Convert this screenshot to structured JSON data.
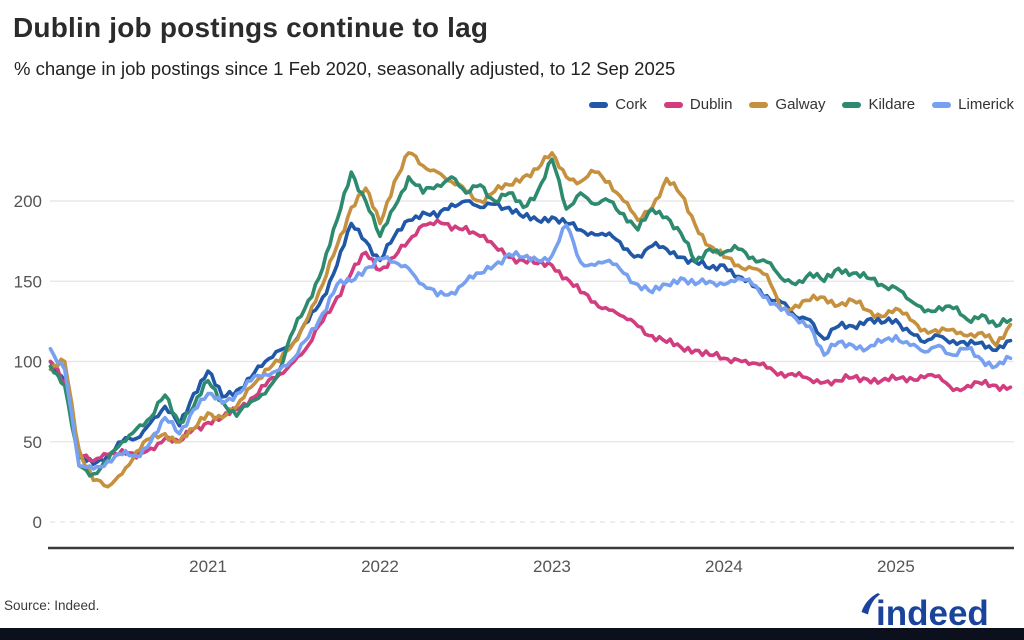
{
  "header": {
    "title": "Dublin job postings continue to lag",
    "subtitle": "% change in job postings since 1 Feb 2020, seasonally adjusted, to 12 Sep 2025"
  },
  "footer": {
    "source_text": "Source: Indeed.",
    "logo_text": "indeed"
  },
  "colors": {
    "accent_blue": "#1a449c",
    "grid": "#e4e4e4",
    "axis": "#3c3c3c",
    "tick_text": "#555555",
    "bottom_bar": "#0c101c"
  },
  "chart_data": {
    "type": "line",
    "title": "Dublin job postings continue to lag",
    "subtitle": "% change in job postings since 1 Feb 2020, seasonally adjusted, to 12 Sep 2025",
    "x_unit": "month",
    "x_start": "2020-02",
    "x_end": "2025-09",
    "grid": "horizontal",
    "legend_position": "top-right",
    "y_axis": {
      "ticks": [
        0,
        50,
        100,
        150,
        200
      ],
      "range": [
        0,
        235
      ],
      "label": "% change since 1 Feb 2020"
    },
    "x_ticks": [
      {
        "label": "2021",
        "month": 11
      },
      {
        "label": "2022",
        "month": 23
      },
      {
        "label": "2023",
        "month": 35
      },
      {
        "label": "2024",
        "month": 47
      },
      {
        "label": "2025",
        "month": 59
      }
    ],
    "series": [
      {
        "name": "Cork",
        "color": "#2057a7",
        "values": [
          100,
          88,
          40,
          36,
          42,
          50,
          52,
          62,
          72,
          60,
          80,
          94,
          78,
          82,
          90,
          100,
          107,
          112,
          125,
          140,
          160,
          186,
          175,
          163,
          178,
          188,
          193,
          190,
          198,
          200,
          196,
          198,
          196,
          190,
          188,
          190,
          186,
          182,
          179,
          180,
          170,
          166,
          172,
          170,
          165,
          162,
          158,
          160,
          153,
          147,
          141,
          137,
          128,
          126,
          114,
          122,
          122,
          126,
          124,
          126,
          118,
          112,
          116,
          113,
          110,
          112,
          107,
          113
        ]
      },
      {
        "name": "Dublin",
        "color": "#d13d7f",
        "values": [
          100,
          87,
          42,
          38,
          42,
          45,
          40,
          46,
          52,
          50,
          58,
          62,
          65,
          70,
          77,
          85,
          92,
          100,
          110,
          125,
          140,
          155,
          168,
          157,
          165,
          175,
          185,
          188,
          182,
          184,
          178,
          172,
          165,
          163,
          161,
          160,
          152,
          143,
          137,
          132,
          128,
          122,
          116,
          112,
          109,
          107,
          104,
          102,
          101,
          99,
          96,
          93,
          91,
          89,
          87,
          88,
          90,
          89,
          88,
          89,
          90,
          90,
          91,
          82,
          85,
          86,
          85,
          84
        ]
      },
      {
        "name": "Galway",
        "color": "#c6913f",
        "values": [
          95,
          100,
          45,
          26,
          22,
          30,
          44,
          52,
          55,
          50,
          58,
          68,
          65,
          72,
          84,
          95,
          100,
          112,
          128,
          148,
          172,
          196,
          208,
          186,
          212,
          230,
          222,
          218,
          212,
          206,
          200,
          206,
          210,
          215,
          220,
          230,
          215,
          212,
          218,
          212,
          200,
          188,
          196,
          214,
          204,
          185,
          172,
          165,
          160,
          158,
          154,
          132,
          135,
          138,
          140,
          135,
          138,
          132,
          128,
          133,
          126,
          120,
          118,
          120,
          116,
          118,
          110,
          123
        ]
      },
      {
        "name": "Kildare",
        "color": "#2d8a6e",
        "values": [
          97,
          85,
          35,
          30,
          38,
          50,
          58,
          65,
          79,
          62,
          72,
          88,
          75,
          66,
          75,
          80,
          95,
          120,
          138,
          158,
          188,
          218,
          200,
          178,
          196,
          215,
          205,
          210,
          215,
          205,
          210,
          200,
          205,
          196,
          206,
          226,
          195,
          205,
          198,
          200,
          192,
          182,
          195,
          190,
          180,
          162,
          170,
          168,
          170,
          165,
          162,
          152,
          148,
          155,
          150,
          158,
          155,
          152,
          148,
          146,
          138,
          131,
          134,
          133,
          126,
          129,
          122,
          126
        ]
      },
      {
        "name": "Limerick",
        "color": "#77a1f0",
        "values": [
          108,
          95,
          35,
          33,
          38,
          42,
          41,
          50,
          65,
          55,
          70,
          80,
          74,
          80,
          88,
          92,
          95,
          102,
          115,
          130,
          148,
          150,
          158,
          164,
          162,
          158,
          148,
          141,
          143,
          150,
          155,
          160,
          167,
          165,
          163,
          166,
          185,
          162,
          160,
          163,
          155,
          148,
          143,
          148,
          152,
          148,
          150,
          148,
          152,
          148,
          140,
          132,
          127,
          122,
          104,
          112,
          110,
          108,
          112,
          116,
          110,
          106,
          110,
          104,
          108,
          101,
          97,
          102
        ]
      }
    ]
  }
}
